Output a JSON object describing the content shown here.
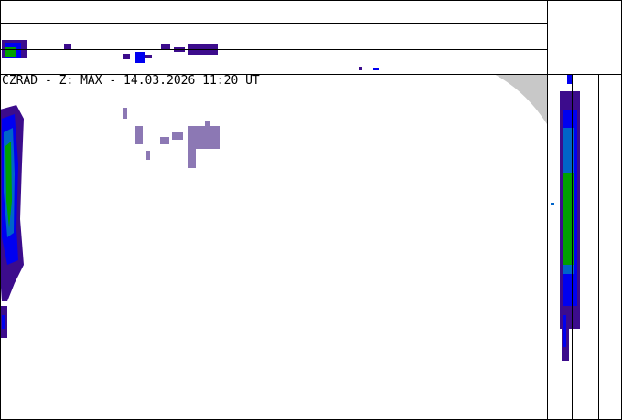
{
  "title": "CZRAD - Z: MAX - 14.03.2026 11:20 UT",
  "colors": {
    "weak": "#3c0c8c",
    "blue": "#0000f0",
    "midblue": "#0064c8",
    "green": "#00a000",
    "lightgreen": "#00c800",
    "clutter": "#8c78b4",
    "outside": "#c8c8c8"
  }
}
